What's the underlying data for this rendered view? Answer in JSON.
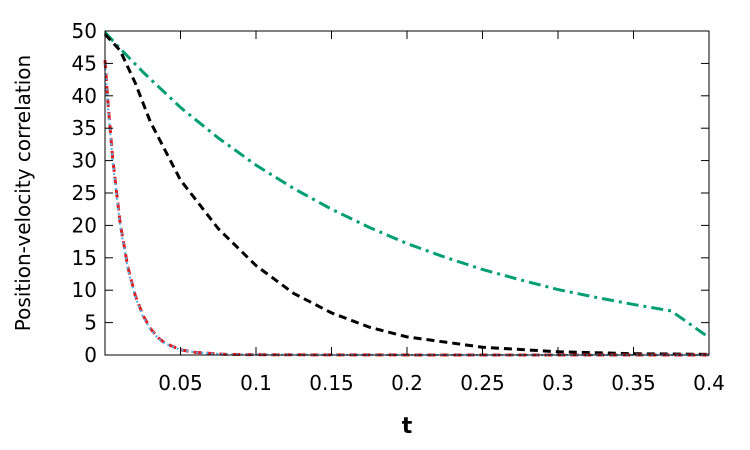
{
  "chart_data": {
    "type": "line",
    "title": "",
    "xlabel": "t",
    "ylabel": "Position-velocity correlation",
    "xlim": [
      0,
      0.4
    ],
    "ylim": [
      0,
      50
    ],
    "grid": false,
    "legend": "none",
    "xticks": [
      {
        "value": 0.05,
        "label": "0.05"
      },
      {
        "value": 0.1,
        "label": "0.1"
      },
      {
        "value": 0.15,
        "label": "0.15"
      },
      {
        "value": 0.2,
        "label": "0.2"
      },
      {
        "value": 0.25,
        "label": "0.25"
      },
      {
        "value": 0.3,
        "label": "0.3"
      },
      {
        "value": 0.35,
        "label": "0.35"
      },
      {
        "value": 0.4,
        "label": "0.4"
      }
    ],
    "yticks": [
      {
        "value": 0,
        "label": "0"
      },
      {
        "value": 5,
        "label": "5"
      },
      {
        "value": 10,
        "label": "10"
      },
      {
        "value": 15,
        "label": "15"
      },
      {
        "value": 20,
        "label": "20"
      },
      {
        "value": 25,
        "label": "25"
      },
      {
        "value": 30,
        "label": "30"
      },
      {
        "value": 35,
        "label": "35"
      },
      {
        "value": 40,
        "label": "40"
      },
      {
        "value": 45,
        "label": "45"
      },
      {
        "value": 50,
        "label": "50"
      }
    ],
    "series": [
      {
        "color": "#009e73",
        "dash": "dash-dot",
        "x": [
          0,
          0.01,
          0.025,
          0.05,
          0.075,
          0.1,
          0.125,
          0.15,
          0.175,
          0.2,
          0.225,
          0.25,
          0.275,
          0.3,
          0.325,
          0.35,
          0.375,
          0.4
        ],
        "y": [
          49.8,
          47.3,
          43.7,
          38.2,
          33.5,
          29.3,
          25.7,
          22.5,
          19.7,
          17.2,
          15.1,
          13.2,
          11.6,
          10.1,
          8.9,
          7.8,
          6.8,
          2.7
        ]
      },
      {
        "color": "#000000",
        "dash": "dashed",
        "x": [
          0,
          0.01,
          0.02,
          0.03,
          0.04,
          0.05,
          0.075,
          0.1,
          0.125,
          0.15,
          0.175,
          0.2,
          0.25,
          0.3,
          0.35,
          0.4
        ],
        "y": [
          49.5,
          47.0,
          42.0,
          36.0,
          31.5,
          27.0,
          19.5,
          13.8,
          9.5,
          6.5,
          4.3,
          2.8,
          1.2,
          0.5,
          0.2,
          0.1
        ]
      },
      {
        "color": "#e31a1c",
        "dash": "dashed",
        "x": [
          0,
          0.002,
          0.005,
          0.01,
          0.015,
          0.02,
          0.025,
          0.03,
          0.035,
          0.04,
          0.05,
          0.06,
          0.08,
          0.1,
          0.15,
          0.2,
          0.3,
          0.4
        ],
        "y": [
          45.5,
          38.8,
          30.5,
          20.4,
          13.7,
          9.2,
          6.2,
          4.1,
          2.7,
          1.8,
          0.8,
          0.4,
          0.1,
          0.05,
          0.02,
          0.01,
          0.0,
          0.0
        ]
      },
      {
        "color": "#56b4e9",
        "dash": "dotted",
        "x": [
          0,
          0.002,
          0.005,
          0.01,
          0.015,
          0.02,
          0.025,
          0.03,
          0.035,
          0.04,
          0.05,
          0.06,
          0.08,
          0.1,
          0.15,
          0.2,
          0.3,
          0.4
        ],
        "y": [
          45.0,
          38.3,
          30.0,
          20.0,
          13.4,
          9.0,
          6.0,
          4.0,
          2.6,
          1.7,
          0.8,
          0.4,
          0.1,
          0.05,
          0.02,
          0.01,
          0.0,
          0.0
        ]
      }
    ]
  }
}
